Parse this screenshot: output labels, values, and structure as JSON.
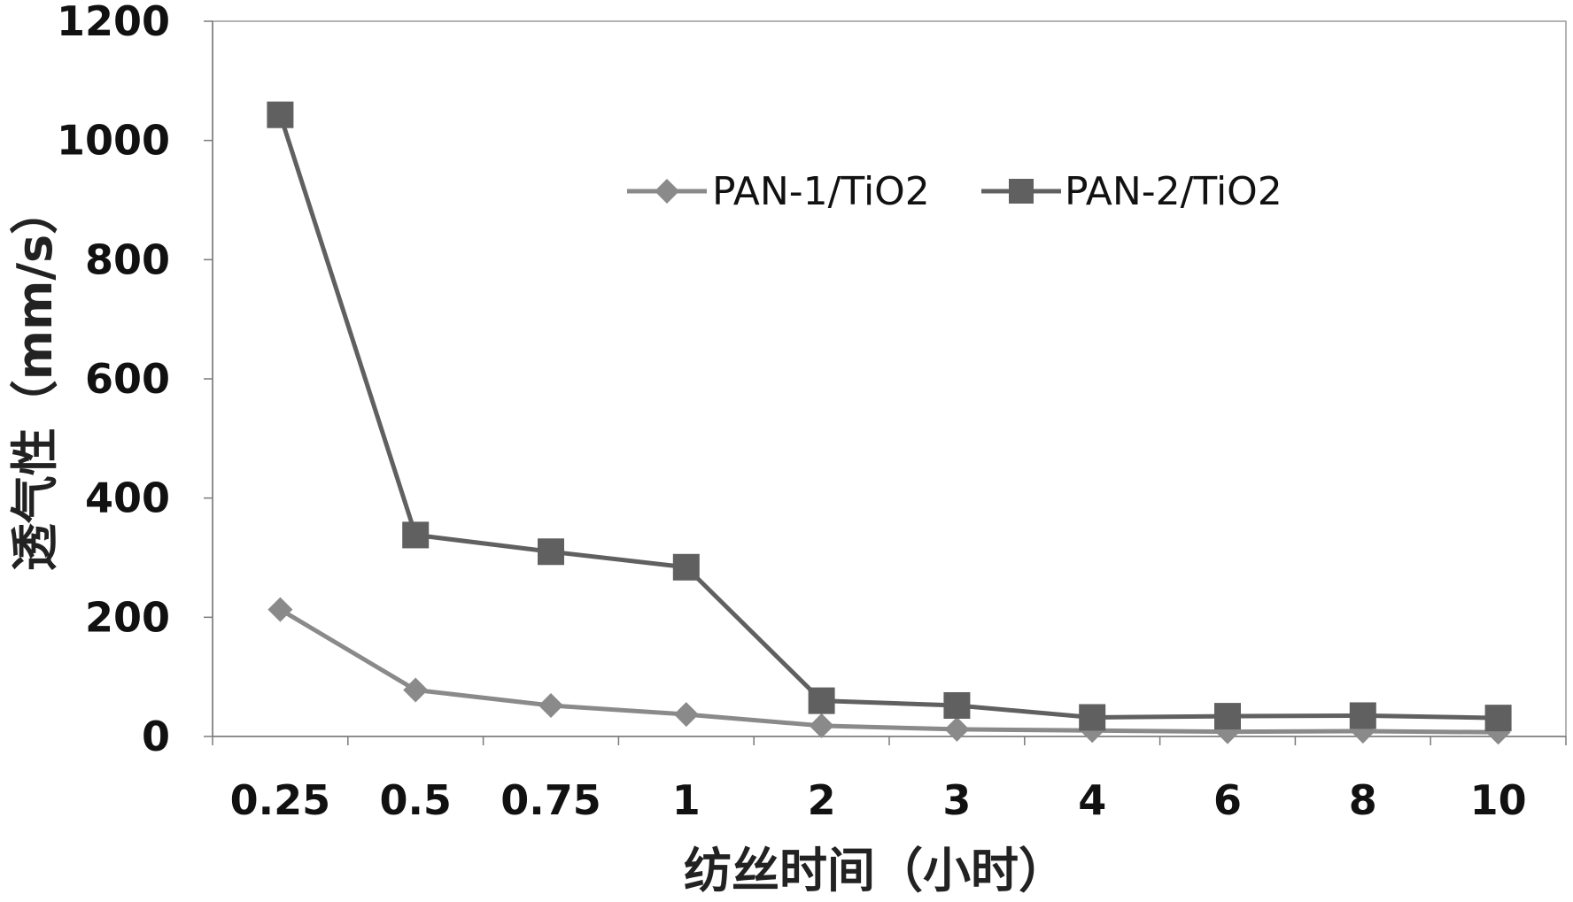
{
  "chart_data": {
    "type": "line",
    "categories": [
      "0.25",
      "0.5",
      "0.75",
      "1",
      "2",
      "3",
      "4",
      "6",
      "8",
      "10"
    ],
    "series": [
      {
        "name": "PAN-1/TiO2",
        "values": [
          213,
          78,
          52,
          37,
          18,
          12,
          10,
          8,
          9,
          7
        ],
        "color": "#8a8a8a",
        "marker": "diamond"
      },
      {
        "name": "PAN-2/TiO2",
        "values": [
          1043,
          338,
          310,
          284,
          60,
          52,
          32,
          34,
          35,
          31
        ],
        "color": "#606060",
        "marker": "square"
      }
    ],
    "ylim": [
      0,
      1200
    ],
    "yticks": [
      "0",
      "200",
      "400",
      "600",
      "800",
      "1000",
      "1200"
    ],
    "xlabel": "纺丝时间（小时）",
    "ylabel": "透气性（mm/s）",
    "legend_position": "top-center",
    "grid": false
  }
}
